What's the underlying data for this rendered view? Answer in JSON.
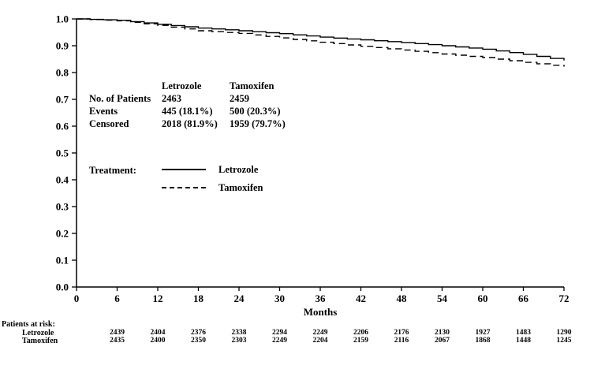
{
  "chart_data": {
    "type": "line",
    "title": "",
    "xlabel": "Months",
    "ylabel": "",
    "xlim": [
      0,
      72
    ],
    "ylim": [
      0.0,
      1.0
    ],
    "grid": false,
    "legend_position": "inside-left",
    "x_tick_labels": [
      "0",
      "6",
      "12",
      "18",
      "24",
      "30",
      "36",
      "42",
      "48",
      "54",
      "60",
      "66",
      "72"
    ],
    "y_tick_labels": [
      "0.0",
      "0.1",
      "0.2",
      "0.3",
      "0.4",
      "0.5",
      "0.6",
      "0.7",
      "0.8",
      "0.9",
      "1.0"
    ],
    "series": [
      {
        "name": "Letrozole",
        "style": "solid",
        "color": "#000000",
        "x": [
          0,
          6,
          12,
          18,
          24,
          30,
          36,
          42,
          48,
          54,
          60,
          66,
          72
        ],
        "y": [
          1.0,
          0.995,
          0.98,
          0.966,
          0.956,
          0.945,
          0.932,
          0.922,
          0.912,
          0.9,
          0.887,
          0.868,
          0.845
        ]
      },
      {
        "name": "Tamoxifen",
        "style": "dashed",
        "color": "#000000",
        "x": [
          0,
          6,
          12,
          18,
          24,
          30,
          36,
          42,
          48,
          54,
          60,
          66,
          72
        ],
        "y": [
          1.0,
          0.993,
          0.976,
          0.956,
          0.946,
          0.929,
          0.913,
          0.898,
          0.884,
          0.869,
          0.856,
          0.838,
          0.822
        ]
      }
    ]
  },
  "stats_table": {
    "columns": [
      "Letrozole",
      "Tamoxifen"
    ],
    "rows": [
      {
        "label": "No. of Patients",
        "letrozole": "2463",
        "tamoxifen": "2459"
      },
      {
        "label": "Events",
        "letrozole": "445 (18.1%)",
        "tamoxifen": "500 (20.3%)"
      },
      {
        "label": "Censored",
        "letrozole": "2018 (81.9%)",
        "tamoxifen": "1959 (79.7%)"
      }
    ]
  },
  "legend": {
    "title": "Treatment:",
    "items": [
      {
        "label": "Letrozole",
        "style": "solid"
      },
      {
        "label": "Tamoxifen",
        "style": "dashed"
      }
    ]
  },
  "at_risk": {
    "title": "Patients at risk:",
    "months": [
      6,
      12,
      18,
      24,
      30,
      36,
      42,
      48,
      54,
      60,
      66,
      72
    ],
    "rows": [
      {
        "label": "Letrozole",
        "counts": [
          "2439",
          "2404",
          "2376",
          "2338",
          "2294",
          "2249",
          "2206",
          "2176",
          "2130",
          "1927",
          "1483",
          "1290"
        ]
      },
      {
        "label": "Tamoxifen",
        "counts": [
          "2435",
          "2400",
          "2350",
          "2303",
          "2249",
          "2204",
          "2159",
          "2116",
          "2067",
          "1868",
          "1448",
          "1245"
        ]
      }
    ]
  }
}
